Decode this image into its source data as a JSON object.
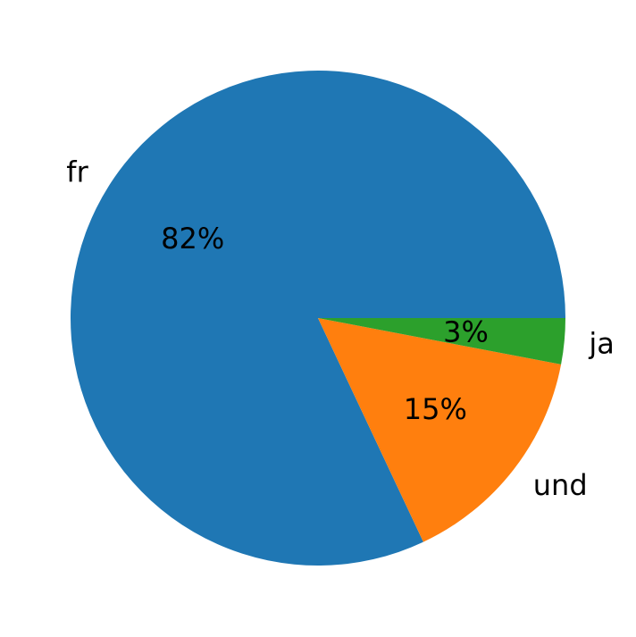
{
  "chart_data": {
    "type": "pie",
    "title": "",
    "labels": [
      "fr",
      "und",
      "ja"
    ],
    "values": [
      82,
      15,
      3
    ],
    "value_labels": [
      "82%",
      "15%",
      "3%"
    ],
    "colors": [
      "#1f77b4",
      "#ff7f0e",
      "#2ca02c"
    ],
    "start_angle_deg": 0,
    "direction": "counterclockwise",
    "legend": "none"
  }
}
